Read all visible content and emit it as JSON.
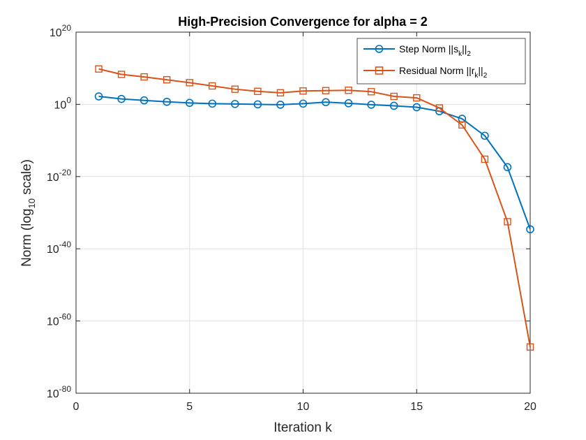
{
  "colors": {
    "step": "#0072bd",
    "residual": "#d95319",
    "grid": "#e0e0e0",
    "axis": "#262626"
  },
  "chart_data": {
    "type": "line",
    "title": "High-Precision Convergence for alpha = 2",
    "xlabel": "Iteration k",
    "ylabel": {
      "pre": "Norm (log",
      "sub": "10",
      "post": " scale)"
    },
    "yscale": "log",
    "xlim": [
      0,
      20
    ],
    "ylim_exp": [
      -80,
      20
    ],
    "x_ticks": [
      0,
      5,
      10,
      15,
      20
    ],
    "y_tick_exps": [
      20,
      0,
      -20,
      -40,
      -60,
      -80
    ],
    "y_tick_base": "10",
    "grid": true,
    "legend_position": "top-right",
    "x": [
      1,
      2,
      3,
      4,
      5,
      6,
      7,
      8,
      9,
      10,
      11,
      12,
      13,
      14,
      15,
      16,
      17,
      18,
      19,
      20
    ],
    "series": [
      {
        "name": "Step Norm ||s_k||_2",
        "legend": {
          "pre": "Step Norm ||s",
          "sub": "k",
          "mid": "||",
          "sub2": "2"
        },
        "marker": "circle",
        "color": "#0072bd",
        "log10_values": [
          2.2,
          1.5,
          1.1,
          0.7,
          0.4,
          0.2,
          0.1,
          0.0,
          -0.1,
          0.2,
          0.6,
          0.3,
          -0.1,
          -0.4,
          -0.8,
          -1.9,
          -4.0,
          -8.7,
          -17.4,
          -34.6
        ]
      },
      {
        "name": "Residual Norm ||r_k||_2",
        "legend": {
          "pre": "Residual Norm ||r",
          "sub": "k",
          "mid": "||",
          "sub2": "2"
        },
        "marker": "square",
        "color": "#d95319",
        "log10_values": [
          9.8,
          8.3,
          7.6,
          6.8,
          6.0,
          5.1,
          4.2,
          3.6,
          3.2,
          3.7,
          3.8,
          3.9,
          3.5,
          2.2,
          1.8,
          -1.0,
          -5.7,
          -15.2,
          -32.5,
          -67.2
        ]
      }
    ]
  }
}
